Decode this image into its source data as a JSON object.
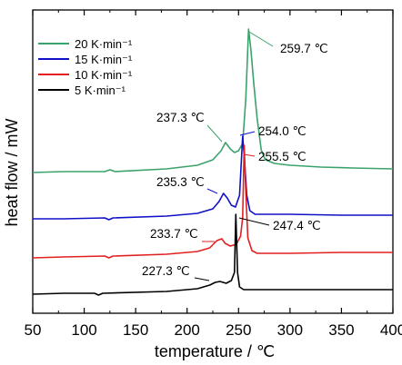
{
  "chart_data": {
    "type": "line",
    "title": "",
    "xlabel": "temperature / ℃",
    "ylabel": "heat flow / mW",
    "xlim": [
      50,
      400
    ],
    "x_ticks": [
      "50",
      "100",
      "150",
      "200",
      "250",
      "300",
      "350",
      "400"
    ],
    "y_ticks_labeled": false,
    "grid": false,
    "legend_position": "top-left",
    "series": [
      {
        "name": "20 K·min⁻¹",
        "color": "#3aa36b",
        "points": [
          [
            50,
            190
          ],
          [
            80,
            189
          ],
          [
            120,
            189
          ],
          [
            125,
            187
          ],
          [
            130,
            189
          ],
          [
            180,
            186
          ],
          [
            210,
            182
          ],
          [
            225,
            176
          ],
          [
            233,
            166
          ],
          [
            237.3,
            157
          ],
          [
            242,
            164
          ],
          [
            246,
            168
          ],
          [
            250,
            166
          ],
          [
            254,
            158
          ],
          [
            257,
            110
          ],
          [
            259.7,
            32
          ],
          [
            262,
            55
          ],
          [
            265,
            95
          ],
          [
            268,
            130
          ],
          [
            272,
            165
          ],
          [
            276,
            176
          ],
          [
            285,
            180
          ],
          [
            300,
            182
          ],
          [
            330,
            184
          ],
          [
            360,
            185
          ],
          [
            400,
            186
          ]
        ]
      },
      {
        "name": "15 K·min⁻¹",
        "color": "#1010c8",
        "points": [
          [
            50,
            241
          ],
          [
            80,
            241
          ],
          [
            120,
            240
          ],
          [
            124,
            242
          ],
          [
            128,
            240
          ],
          [
            180,
            238
          ],
          [
            210,
            235
          ],
          [
            225,
            230
          ],
          [
            231,
            222
          ],
          [
            235.3,
            213
          ],
          [
            239,
            218
          ],
          [
            243,
            226
          ],
          [
            247,
            228
          ],
          [
            251,
            215
          ],
          [
            254,
            150
          ],
          [
            256,
            180
          ],
          [
            258,
            215
          ],
          [
            261,
            232
          ],
          [
            266,
            236
          ],
          [
            300,
            236
          ],
          [
            350,
            237
          ],
          [
            400,
            237
          ]
        ]
      },
      {
        "name": "10 K·min⁻¹",
        "color": "#e22020",
        "points": [
          [
            50,
            284
          ],
          [
            80,
            283
          ],
          [
            120,
            282
          ],
          [
            124,
            284
          ],
          [
            128,
            282
          ],
          [
            180,
            280
          ],
          [
            210,
            277
          ],
          [
            222,
            273
          ],
          [
            229,
            265
          ],
          [
            233.7,
            263
          ],
          [
            237,
            268
          ],
          [
            242,
            271
          ],
          [
            248,
            269
          ],
          [
            252,
            260
          ],
          [
            254,
            240
          ],
          [
            255.5,
            160
          ],
          [
            257,
            210
          ],
          [
            259,
            262
          ],
          [
            263,
            276
          ],
          [
            268,
            279
          ],
          [
            300,
            279
          ],
          [
            350,
            278
          ],
          [
            400,
            278
          ]
        ]
      },
      {
        "name": "5 K·min⁻¹",
        "color": "#000000",
        "points": [
          [
            50,
            324
          ],
          [
            80,
            323
          ],
          [
            110,
            323
          ],
          [
            114,
            325
          ],
          [
            118,
            323
          ],
          [
            180,
            321
          ],
          [
            210,
            318
          ],
          [
            222,
            314
          ],
          [
            227.3,
            311
          ],
          [
            232,
            310
          ],
          [
            238,
            312
          ],
          [
            243,
            309
          ],
          [
            246,
            300
          ],
          [
            247.4,
            236
          ],
          [
            249,
            300
          ],
          [
            251,
            316
          ],
          [
            255,
            319
          ],
          [
            270,
            319
          ],
          [
            300,
            319
          ],
          [
            350,
            319
          ],
          [
            400,
            319
          ]
        ]
      }
    ],
    "annotations": [
      {
        "text": "259.7 ℃",
        "color": "#3aa36b"
      },
      {
        "text": "237.3 ℃",
        "color": "#3aa36b"
      },
      {
        "text": "254.0 ℃",
        "color": "#1010c8"
      },
      {
        "text": "255.5 ℃",
        "color": "#e22020"
      },
      {
        "text": "235.3 ℃",
        "color": "#1010c8"
      },
      {
        "text": "247.4 ℃",
        "color": "#000000"
      },
      {
        "text": "233.7 ℃",
        "color": "#e22020"
      },
      {
        "text": "227.3 ℃",
        "color": "#000000"
      }
    ]
  }
}
